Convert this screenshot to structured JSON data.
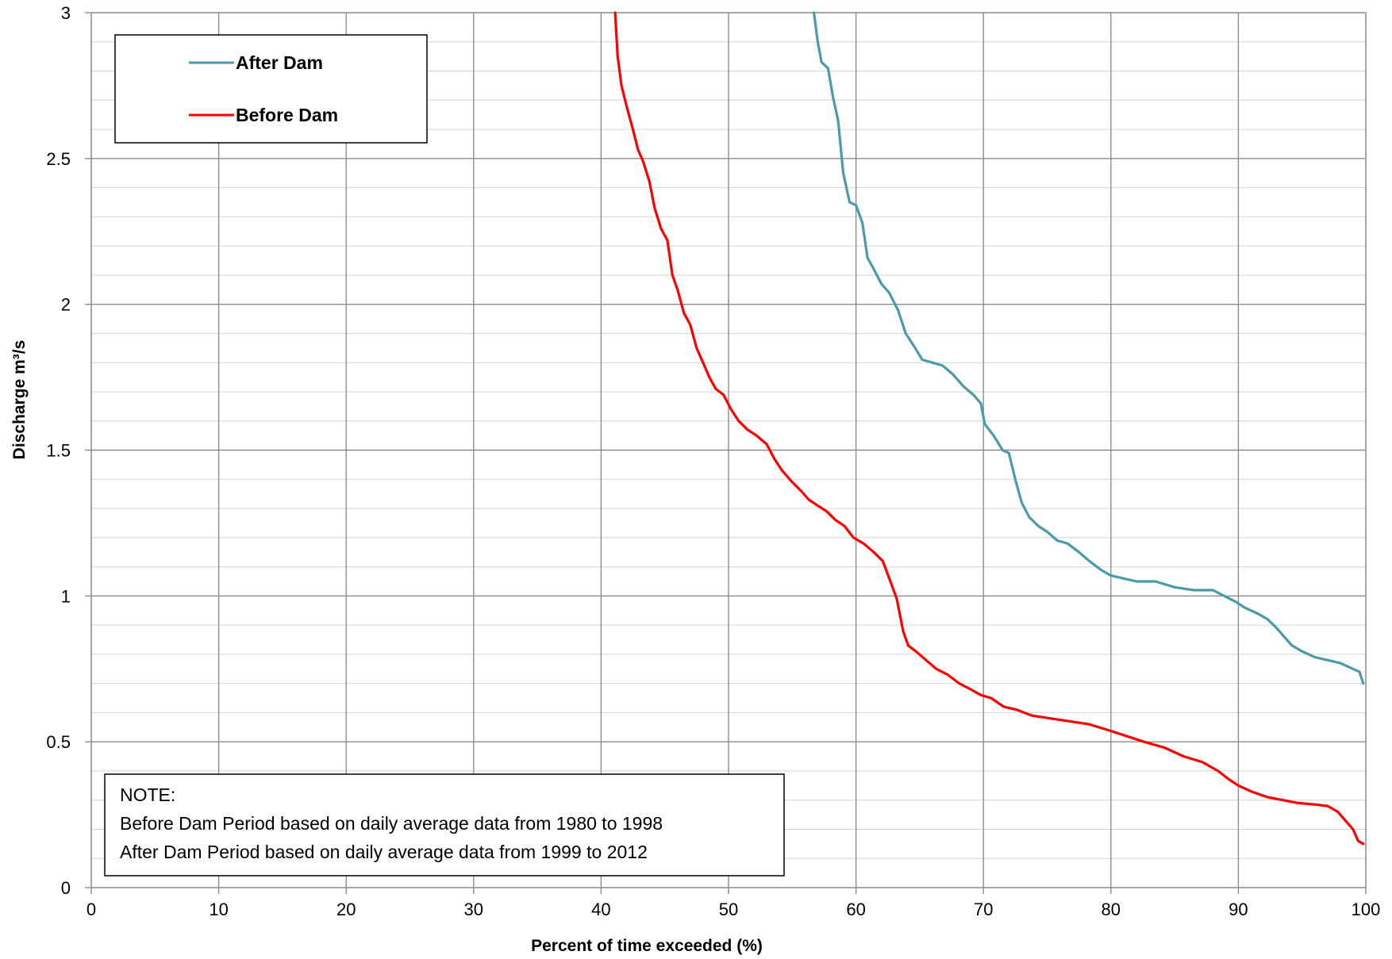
{
  "chart_data": {
    "type": "line",
    "title": "",
    "xlabel": "Percent of time exceeded (%)",
    "ylabel": "Discharge m³/s",
    "xlim": [
      0,
      100
    ],
    "ylim": [
      0,
      3
    ],
    "xticks": [
      0,
      10,
      20,
      30,
      40,
      50,
      60,
      70,
      80,
      90,
      100
    ],
    "xtick_labels": [
      "0",
      "10",
      "20",
      "30",
      "40",
      "50",
      "60",
      "70",
      "80",
      "90",
      "100"
    ],
    "yticks": [
      0,
      0.5,
      1,
      1.5,
      2,
      2.5,
      3
    ],
    "ytick_labels": [
      "0",
      "0.5",
      "1",
      "1.5",
      "2",
      "2.5",
      "3"
    ],
    "grid": "on",
    "legend_position": "top-left",
    "series": [
      {
        "name": "After Dam",
        "color": "#4a9aaa",
        "points": [
          [
            56.7,
            3.0
          ],
          [
            57.0,
            2.9
          ],
          [
            57.3,
            2.83
          ],
          [
            57.8,
            2.81
          ],
          [
            58.2,
            2.71
          ],
          [
            58.6,
            2.63
          ],
          [
            59.0,
            2.45
          ],
          [
            59.5,
            2.35
          ],
          [
            60.0,
            2.34
          ],
          [
            60.5,
            2.28
          ],
          [
            60.9,
            2.16
          ],
          [
            61.4,
            2.12
          ],
          [
            62.0,
            2.07
          ],
          [
            62.6,
            2.04
          ],
          [
            63.3,
            1.98
          ],
          [
            63.9,
            1.9
          ],
          [
            64.5,
            1.86
          ],
          [
            65.2,
            1.81
          ],
          [
            66.0,
            1.8
          ],
          [
            66.8,
            1.79
          ],
          [
            67.6,
            1.76
          ],
          [
            68.4,
            1.72
          ],
          [
            69.2,
            1.69
          ],
          [
            69.8,
            1.66
          ],
          [
            70.1,
            1.59
          ],
          [
            70.8,
            1.55
          ],
          [
            71.5,
            1.5
          ],
          [
            72.0,
            1.49
          ],
          [
            72.5,
            1.4
          ],
          [
            73.0,
            1.32
          ],
          [
            73.6,
            1.27
          ],
          [
            74.3,
            1.24
          ],
          [
            75.0,
            1.22
          ],
          [
            75.8,
            1.19
          ],
          [
            76.6,
            1.18
          ],
          [
            77.5,
            1.15
          ],
          [
            78.3,
            1.12
          ],
          [
            79.2,
            1.09
          ],
          [
            80.0,
            1.07
          ],
          [
            81.0,
            1.06
          ],
          [
            82.0,
            1.05
          ],
          [
            83.5,
            1.05
          ],
          [
            85.0,
            1.03
          ],
          [
            86.5,
            1.02
          ],
          [
            88.0,
            1.02
          ],
          [
            88.9,
            1.0
          ],
          [
            89.8,
            0.98
          ],
          [
            90.5,
            0.96
          ],
          [
            91.5,
            0.94
          ],
          [
            92.3,
            0.92
          ],
          [
            93.0,
            0.89
          ],
          [
            93.6,
            0.86
          ],
          [
            94.2,
            0.83
          ],
          [
            95.0,
            0.81
          ],
          [
            96.0,
            0.79
          ],
          [
            97.0,
            0.78
          ],
          [
            98.0,
            0.77
          ],
          [
            99.0,
            0.75
          ],
          [
            99.5,
            0.74
          ],
          [
            99.8,
            0.7
          ]
        ]
      },
      {
        "name": "Before Dam",
        "color": "#ff0000",
        "points": [
          [
            41.1,
            3.0
          ],
          [
            41.3,
            2.85
          ],
          [
            41.6,
            2.75
          ],
          [
            42.0,
            2.68
          ],
          [
            42.5,
            2.6
          ],
          [
            42.9,
            2.53
          ],
          [
            43.3,
            2.49
          ],
          [
            43.8,
            2.42
          ],
          [
            44.2,
            2.33
          ],
          [
            44.7,
            2.26
          ],
          [
            45.2,
            2.22
          ],
          [
            45.6,
            2.1
          ],
          [
            46.0,
            2.05
          ],
          [
            46.5,
            1.97
          ],
          [
            47.0,
            1.93
          ],
          [
            47.5,
            1.85
          ],
          [
            48.0,
            1.8
          ],
          [
            48.5,
            1.75
          ],
          [
            49.0,
            1.71
          ],
          [
            49.6,
            1.69
          ],
          [
            50.2,
            1.64
          ],
          [
            50.8,
            1.6
          ],
          [
            51.5,
            1.57
          ],
          [
            52.2,
            1.55
          ],
          [
            53.0,
            1.52
          ],
          [
            53.6,
            1.47
          ],
          [
            54.2,
            1.43
          ],
          [
            55.0,
            1.39
          ],
          [
            55.7,
            1.36
          ],
          [
            56.3,
            1.33
          ],
          [
            57.0,
            1.31
          ],
          [
            57.7,
            1.29
          ],
          [
            58.4,
            1.26
          ],
          [
            59.1,
            1.24
          ],
          [
            59.8,
            1.2
          ],
          [
            60.6,
            1.18
          ],
          [
            61.4,
            1.15
          ],
          [
            62.1,
            1.12
          ],
          [
            62.7,
            1.05
          ],
          [
            63.2,
            0.99
          ],
          [
            63.7,
            0.88
          ],
          [
            64.1,
            0.83
          ],
          [
            64.7,
            0.81
          ],
          [
            65.5,
            0.78
          ],
          [
            66.3,
            0.75
          ],
          [
            67.2,
            0.73
          ],
          [
            68.1,
            0.7
          ],
          [
            69.0,
            0.68
          ],
          [
            69.8,
            0.66
          ],
          [
            70.6,
            0.65
          ],
          [
            71.6,
            0.62
          ],
          [
            72.6,
            0.61
          ],
          [
            73.8,
            0.59
          ],
          [
            75.3,
            0.58
          ],
          [
            76.8,
            0.57
          ],
          [
            78.3,
            0.56
          ],
          [
            79.8,
            0.54
          ],
          [
            81.2,
            0.52
          ],
          [
            82.6,
            0.5
          ],
          [
            84.2,
            0.48
          ],
          [
            85.7,
            0.45
          ],
          [
            87.2,
            0.43
          ],
          [
            88.4,
            0.4
          ],
          [
            89.3,
            0.37
          ],
          [
            90.0,
            0.35
          ],
          [
            91.0,
            0.33
          ],
          [
            92.3,
            0.31
          ],
          [
            93.5,
            0.3
          ],
          [
            94.7,
            0.29
          ],
          [
            96.0,
            0.285
          ],
          [
            97.0,
            0.28
          ],
          [
            97.8,
            0.26
          ],
          [
            98.4,
            0.23
          ],
          [
            99.0,
            0.2
          ],
          [
            99.4,
            0.16
          ],
          [
            99.8,
            0.15
          ]
        ]
      }
    ]
  },
  "legend": {
    "items": [
      {
        "label": "After Dam",
        "color": "#4a9aaa"
      },
      {
        "label": "Before Dam",
        "color": "#ff0000"
      }
    ]
  },
  "note": {
    "heading": "NOTE:",
    "line1": "Before Dam Period based on daily average data from 1980 to 1998",
    "line2": "After Dam Period based on daily average data from 1999 to 2012"
  }
}
